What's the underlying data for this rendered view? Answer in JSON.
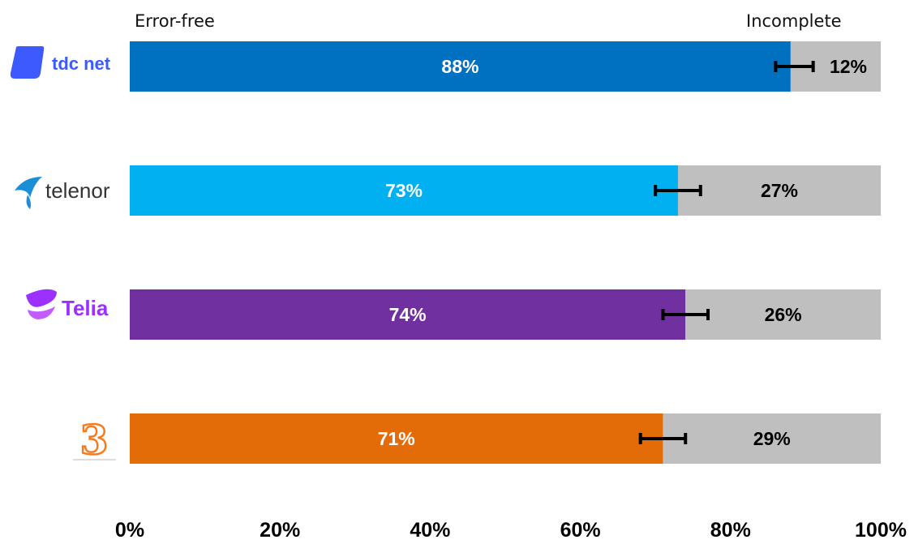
{
  "chart_data": {
    "type": "bar",
    "orientation": "horizontal",
    "stacked": true,
    "percent_stacked": true,
    "header": {
      "left": "Error-free",
      "right": "Incomplete"
    },
    "categories": [
      "tdc net",
      "telenor",
      "Telia",
      "3"
    ],
    "series": [
      {
        "name": "Error-free",
        "values": [
          88,
          73,
          74,
          71
        ],
        "labels": [
          "88%",
          "73%",
          "74%",
          "71%"
        ],
        "colors": [
          "#0070c0",
          "#00b0f0",
          "#7030a0",
          "#e36c09"
        ],
        "error_low": [
          86,
          70,
          71,
          68
        ],
        "error_high": [
          91,
          76,
          77,
          74
        ]
      },
      {
        "name": "Incomplete",
        "values": [
          12,
          27,
          26,
          29
        ],
        "labels": [
          "12%",
          "27%",
          "26%",
          "29%"
        ],
        "color": "#bfbfbf"
      }
    ],
    "x_ticks": [
      "0%",
      "20%",
      "40%",
      "60%",
      "80%",
      "100%"
    ],
    "xlim": [
      0,
      100
    ],
    "grid": false,
    "legend": "none",
    "brand_logos": [
      {
        "category": "tdc net",
        "icon": "tdc-net-logo",
        "color": "#3d5afe",
        "text": "tdc net"
      },
      {
        "category": "telenor",
        "icon": "telenor-logo",
        "color": "#1a8fd8",
        "text": "telenor"
      },
      {
        "category": "Telia",
        "icon": "telia-logo",
        "color": "#9b30ff",
        "text": "Telia"
      },
      {
        "category": "3",
        "icon": "three-logo",
        "color": "#f47c20",
        "text": "3"
      }
    ]
  }
}
